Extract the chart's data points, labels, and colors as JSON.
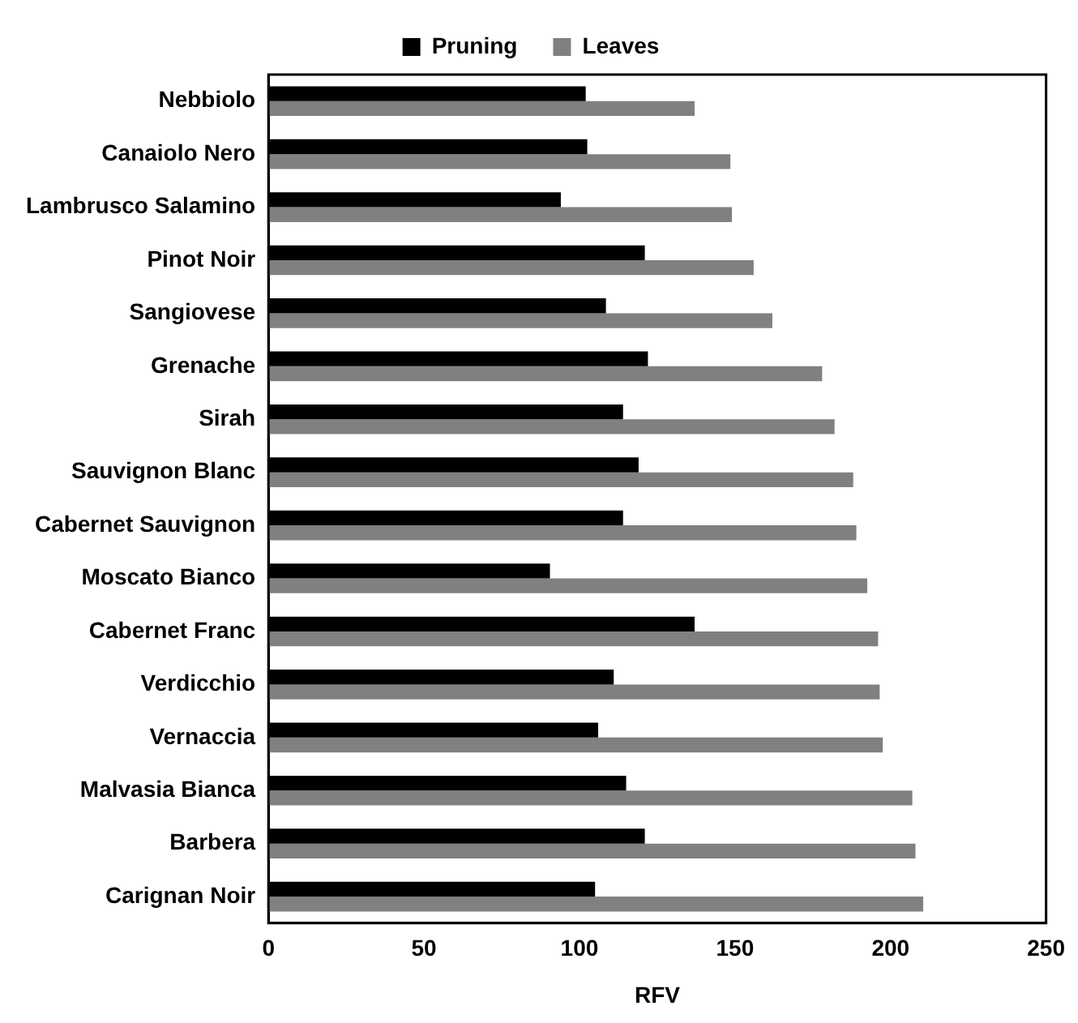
{
  "chart_data": {
    "type": "bar",
    "orientation": "horizontal",
    "xlabel": "RFV",
    "categories": [
      "Nebbiolo",
      "Canaiolo Nero",
      "Lambrusco Salamino",
      "Pinot Noir",
      "Sangiovese",
      "Grenache",
      "Sirah",
      "Sauvignon Blanc",
      "Cabernet Sauvignon",
      "Moscato Bianco",
      "Cabernet Franc",
      "Verdicchio",
      "Vernaccia",
      "Malvasia Bianca",
      "Barbera",
      "Carignan Noir"
    ],
    "series": [
      {
        "name": "Pruning",
        "color": "#000000",
        "values": [
          102,
          102.5,
          94,
          121,
          108.5,
          122,
          114,
          119,
          114,
          90.5,
          137,
          111,
          106,
          115,
          121,
          105
        ]
      },
      {
        "name": "Leaves",
        "color": "#808080",
        "values": [
          137,
          148.5,
          149,
          156,
          162,
          178,
          182,
          188,
          189,
          192.5,
          196,
          196.5,
          197.5,
          207,
          208,
          210.5
        ]
      }
    ],
    "xlim": [
      0,
      250
    ],
    "xticks": [
      0,
      50,
      100,
      150,
      200,
      250
    ],
    "grid": false,
    "legend": "top"
  }
}
